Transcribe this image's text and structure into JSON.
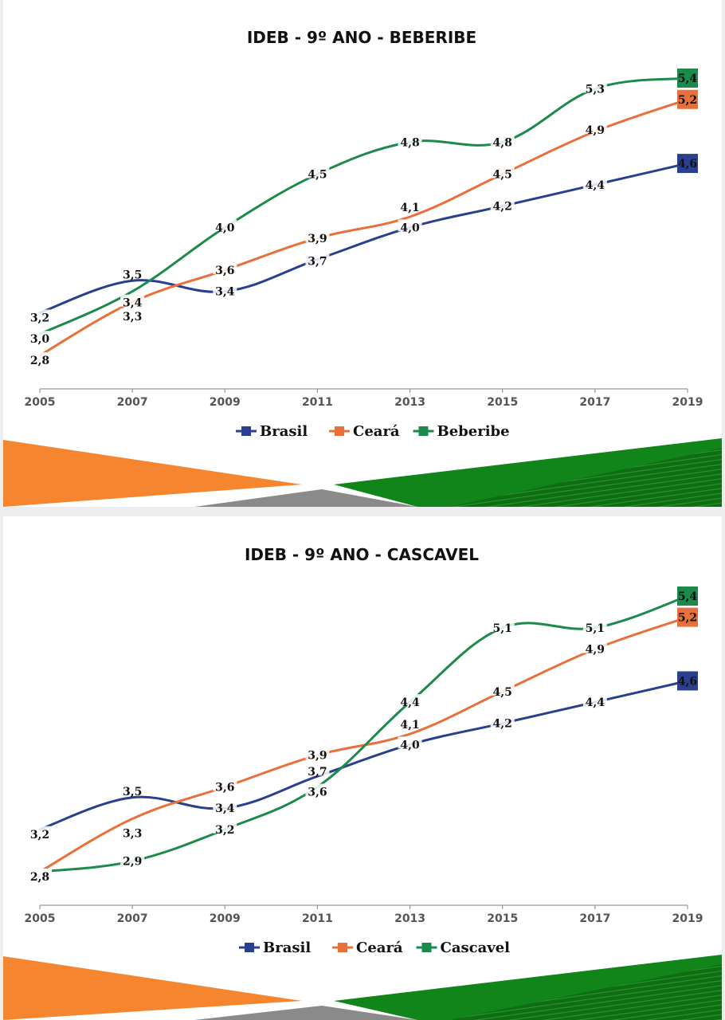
{
  "chart_data": [
    {
      "type": "line",
      "title": "IDEB -  9º ANO - BEBERIBE",
      "categories": [
        "2005",
        "2007",
        "2009",
        "2011",
        "2013",
        "2015",
        "2017",
        "2019"
      ],
      "series": [
        {
          "name": "Brasil",
          "color": "#2b3f8f",
          "values": [
            3.2,
            3.5,
            3.4,
            3.7,
            4.0,
            4.2,
            4.4,
            4.6
          ],
          "labels": [
            "3,2",
            "3,5",
            "3,4",
            "3,7",
            "4,0",
            "4,2",
            "4,4",
            "4,6"
          ]
        },
        {
          "name": "Ceará",
          "color": "#e8703a",
          "values": [
            2.8,
            3.3,
            3.6,
            3.9,
            4.1,
            4.5,
            4.9,
            5.2
          ],
          "labels": [
            "2,8",
            "3,3",
            "3,6",
            "3,9",
            "4,1",
            "4,5",
            "4,9",
            "5,2"
          ]
        },
        {
          "name": "Beberibe",
          "color": "#1b8a4a",
          "values": [
            3.0,
            3.4,
            4.0,
            4.5,
            4.8,
            4.8,
            5.3,
            5.4
          ],
          "labels": [
            "3,0",
            "3,4",
            "4,0",
            "4,5",
            "4,8",
            "4,8",
            "5,3",
            "5,4"
          ]
        }
      ],
      "ylim": [
        2.8,
        5.4
      ],
      "legend": "bottom-center"
    },
    {
      "type": "line",
      "title": "IDEB -  9º ANO - CASCAVEL",
      "categories": [
        "2005",
        "2007",
        "2009",
        "2011",
        "2013",
        "2015",
        "2017",
        "2019"
      ],
      "series": [
        {
          "name": "Brasil",
          "color": "#2b3f8f",
          "values": [
            3.2,
            3.5,
            3.4,
            3.7,
            4.0,
            4.2,
            4.4,
            4.6
          ],
          "labels": [
            "3,2",
            "3,5",
            "3,4",
            "3,7",
            "4,0",
            "4,2",
            "4,4",
            "4,6"
          ]
        },
        {
          "name": "Ceará",
          "color": "#e8703a",
          "values": [
            2.8,
            3.3,
            3.6,
            3.9,
            4.1,
            4.5,
            4.9,
            5.2
          ],
          "labels": [
            "2,8",
            "3,3",
            "3,6",
            "3,9",
            "4,1",
            "4,5",
            "4,9",
            "5,2"
          ]
        },
        {
          "name": "Cascavel",
          "color": "#1b8a4a",
          "values": [
            2.8,
            2.9,
            3.2,
            3.6,
            4.4,
            5.1,
            5.1,
            5.4
          ],
          "labels": [
            "2,8",
            "2,9",
            "3,2",
            "3,6",
            "4,4",
            "5,1",
            "5,1",
            "5,4"
          ]
        }
      ],
      "ylim": [
        2.8,
        5.4
      ],
      "legend": "bottom-center"
    }
  ]
}
